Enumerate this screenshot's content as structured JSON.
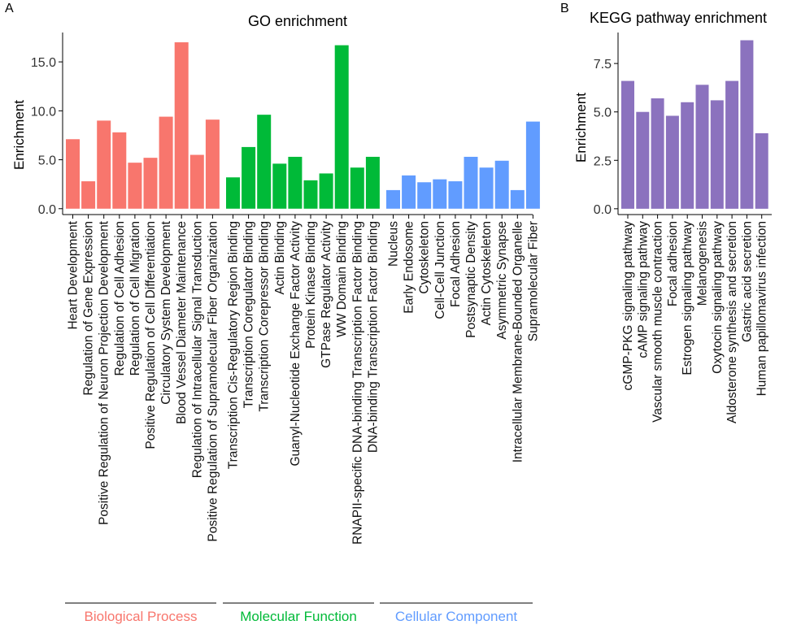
{
  "panel_labels": {
    "a": "A",
    "b": "B"
  },
  "chart_data": [
    {
      "type": "bar",
      "title": "GO enrichment",
      "xlabel": "",
      "ylabel": "Enrichment",
      "ylim": [
        -0.6,
        18.0
      ],
      "yticks": [
        0.0,
        5.0,
        10.0,
        15.0
      ],
      "ytick_labels": [
        "0.0",
        "5.0",
        "10.0",
        "15.0"
      ],
      "groups": [
        {
          "name": "Biological Process",
          "color": "#F8766D",
          "categories": [
            "Heart Development",
            "Regulation of Gene Expression",
            "Positive Regulation of Neuron Projection Development",
            "Regulation of Cell Adhesion",
            "Regulation of Cell Migration",
            "Positive Regulation of Cell Differentiation",
            "Circulatory System Development",
            "Blood Vessel Diameter Maintenance",
            "Regulation of Intracellular Signal Transduction",
            "Positive Regulation of Supramolecular Fiber Organization"
          ],
          "values": [
            7.1,
            2.8,
            9.0,
            7.8,
            4.7,
            5.2,
            9.4,
            17.0,
            5.5,
            9.1
          ]
        },
        {
          "name": "Molecular Function",
          "color": "#00BA38",
          "categories": [
            "Transcription Cis-Regulatory Region Binding",
            "Transcription Coregulator Binding",
            "Transcription Corepressor Binding",
            "Actin Binding",
            "Guanyl-Nucleotide Exchange Factor Activity",
            "Protein Kinase Binding",
            "GTPase Regulator Activity",
            "WW Domain Binding",
            "RNAPII-specific DNA-binding Transcription Factor Binding",
            "DNA-binding Transcription Factor Binding"
          ],
          "values": [
            3.2,
            6.3,
            9.6,
            4.6,
            5.3,
            2.9,
            3.6,
            16.7,
            4.2,
            5.3
          ]
        },
        {
          "name": "Cellular Component",
          "color": "#619CFF",
          "categories": [
            "Nucleus",
            "Early Endosome",
            "Cytoskeleton",
            "Cell-Cell Junction",
            "Focal Adhesion",
            "Postsynaptic Density",
            "Actin Cytoskeleton",
            "Asymmetric Synapse",
            "Intracellular Membrane-Bounded Organelle",
            "Supramolecular Fiber"
          ],
          "values": [
            1.9,
            3.4,
            2.7,
            3.0,
            2.8,
            5.3,
            4.2,
            4.9,
            1.9,
            8.9
          ]
        }
      ]
    },
    {
      "type": "bar",
      "title": "KEGG pathway enrichment",
      "xlabel": "",
      "ylabel": "Enrichment",
      "ylim": [
        -0.3,
        9.1
      ],
      "yticks": [
        0.0,
        2.5,
        5.0,
        7.5
      ],
      "ytick_labels": [
        "0.0",
        "2.5",
        "5.0",
        "7.5"
      ],
      "color": "#8B72BE",
      "categories": [
        "cGMP-PKG signaling pathway",
        "cAMP signaling pathway",
        "Vascular smooth muscle contraction",
        "Focal adhesion",
        "Estrogen signaling pathway",
        "Melanogenesis",
        "Oxytocin signaling pathway",
        "Aldosterone synthesis and secretion",
        "Gastric acid secretion",
        "Human papillomavirus infection"
      ],
      "values": [
        6.6,
        5.0,
        5.7,
        4.8,
        5.5,
        6.4,
        5.6,
        6.6,
        8.7,
        3.9
      ]
    }
  ]
}
